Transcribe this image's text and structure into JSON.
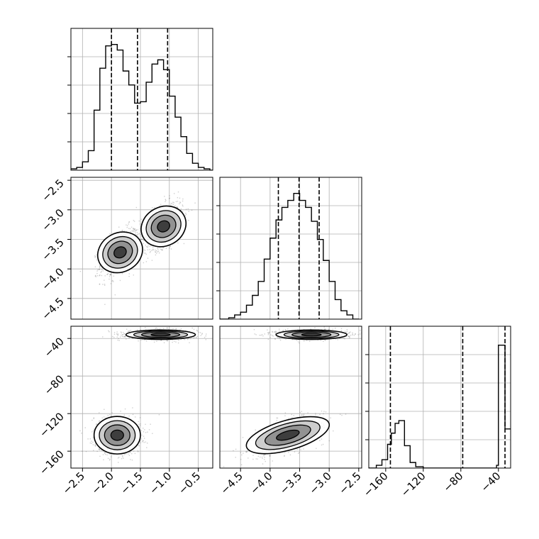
{
  "chart_data": {
    "type": "corner",
    "parameters": [
      {
        "ticks": [
          -2.5,
          -2.0,
          -1.5,
          -1.0,
          -0.5
        ],
        "tick_labels": [
          "−2.5",
          "−2.0",
          "−1.5",
          "−1.0",
          "−0.5"
        ],
        "range": [
          -2.7,
          -0.25
        ]
      },
      {
        "ticks": [
          -4.5,
          -4.0,
          -3.5,
          -3.0,
          -2.5
        ],
        "tick_labels": [
          "−4.5",
          "−4.0",
          "−3.5",
          "−3.0",
          "−2.5"
        ],
        "range": [
          -4.85,
          -2.45
        ]
      },
      {
        "ticks": [
          -160,
          -120,
          -80,
          -40
        ],
        "tick_labels": [
          "−160",
          "−120",
          "−80",
          "−40"
        ],
        "range": [
          -178,
          -27
        ]
      }
    ],
    "y_axes": [
      {
        "row": 1,
        "ticks": [
          -4.5,
          -4.0,
          -3.5,
          -3.0,
          -2.5
        ],
        "tick_labels": [
          "−4.5",
          "−4.0",
          "−3.5",
          "−3.0",
          "−2.5"
        ]
      },
      {
        "row": 2,
        "ticks": [
          -160,
          -120,
          -80,
          -40
        ],
        "tick_labels": [
          "−160",
          "−120",
          "−80",
          "−40"
        ]
      }
    ],
    "histograms": [
      {
        "param": 0,
        "edges": [
          -2.7,
          -2.6,
          -2.5,
          -2.4,
          -2.3,
          -2.2,
          -2.1,
          -2.0,
          -1.9,
          -1.8,
          -1.7,
          -1.6,
          -1.5,
          -1.4,
          -1.3,
          -1.2,
          -1.1,
          -1.0,
          -0.9,
          -0.8,
          -0.7,
          -0.6,
          -0.5,
          -0.4,
          -0.3,
          -0.25
        ],
        "counts": [
          0.01,
          0.02,
          0.06,
          0.14,
          0.43,
          0.73,
          0.89,
          0.9,
          0.86,
          0.71,
          0.61,
          0.48,
          0.49,
          0.63,
          0.76,
          0.79,
          0.72,
          0.53,
          0.38,
          0.24,
          0.12,
          0.05,
          0.02,
          0.01,
          0.0
        ],
        "quantiles": [
          -2.0,
          -1.55,
          -1.03
        ]
      },
      {
        "param": 1,
        "edges": [
          -4.85,
          -4.7,
          -4.6,
          -4.5,
          -4.4,
          -4.3,
          -4.2,
          -4.1,
          -4.0,
          -3.9,
          -3.8,
          -3.7,
          -3.6,
          -3.5,
          -3.4,
          -3.3,
          -3.2,
          -3.1,
          -3.0,
          -2.9,
          -2.8,
          -2.7,
          -2.6,
          -2.5
        ],
        "counts": [
          0.0,
          0.01,
          0.03,
          0.05,
          0.1,
          0.17,
          0.27,
          0.43,
          0.58,
          0.71,
          0.8,
          0.85,
          0.9,
          0.85,
          0.8,
          0.7,
          0.57,
          0.42,
          0.27,
          0.14,
          0.06,
          0.03,
          0.0
        ],
        "quantiles": [
          -3.86,
          -3.51,
          -3.17
        ]
      },
      {
        "param": 2,
        "edges": [
          -178,
          -170,
          -164,
          -158,
          -154,
          -150,
          -146,
          -140,
          -134,
          -128,
          -120,
          -100,
          -50,
          -42,
          -40,
          -33,
          -27
        ],
        "counts": [
          0.0,
          0.02,
          0.06,
          0.17,
          0.25,
          0.32,
          0.34,
          0.16,
          0.04,
          0.01,
          0.0,
          0.0,
          0.0,
          0.02,
          0.88,
          0.28
        ],
        "quantiles": [
          -155,
          -78,
          -33
        ]
      }
    ],
    "density_panels": [
      {
        "x_param": 0,
        "y_param": 1,
        "modes": [
          {
            "x": -1.85,
            "y": -3.72,
            "sx": 0.17,
            "sy": 0.2,
            "rho": 0.5
          },
          {
            "x": -1.1,
            "y": -3.28,
            "sx": 0.17,
            "sy": 0.2,
            "rho": 0.5
          }
        ]
      },
      {
        "x_param": 0,
        "y_param": 2,
        "modes": [
          {
            "x": -1.9,
            "y": -143,
            "sx": 0.2,
            "sy": 10
          },
          {
            "x": -1.15,
            "y": -36,
            "sx": 0.3,
            "sy": 2.5
          }
        ]
      },
      {
        "x_param": 1,
        "y_param": 2,
        "modes": [
          {
            "x": -3.7,
            "y": -143,
            "sx": 0.3,
            "sy": 10,
            "rho": 0.6
          },
          {
            "x": -3.3,
            "y": -36,
            "sx": 0.3,
            "sy": 2.5
          }
        ]
      }
    ],
    "grid": true
  }
}
